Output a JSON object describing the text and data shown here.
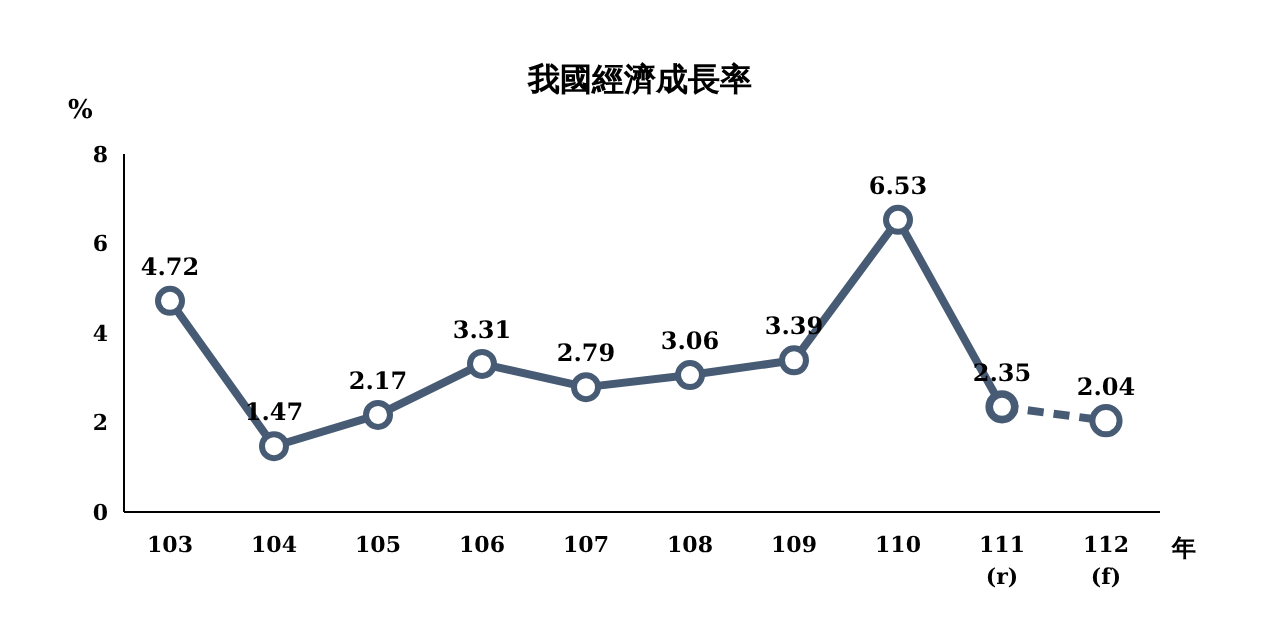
{
  "chart_data": {
    "type": "line",
    "title": "我國經濟成長率",
    "ylabel": "%",
    "xlabel": "年",
    "categories": [
      "103",
      "104",
      "105",
      "106",
      "107",
      "108",
      "109",
      "110",
      "111\n(r)",
      "112\n(f)"
    ],
    "series": [
      {
        "color": "#475c74",
        "line_style": "solid",
        "values": [
          4.72,
          1.47,
          2.17,
          3.31,
          2.79,
          3.06,
          3.39,
          6.53,
          2.35,
          null
        ],
        "value_labels": [
          "4.72",
          "1.47",
          "2.17",
          "3.31",
          "2.79",
          "3.06",
          "3.39",
          "6.53",
          "2.35",
          null
        ]
      },
      {
        "color": "#475c74",
        "line_style": "dashed",
        "values": [
          null,
          null,
          null,
          null,
          null,
          null,
          null,
          null,
          2.35,
          2.04
        ],
        "value_labels": [
          null,
          null,
          null,
          null,
          null,
          null,
          null,
          null,
          null,
          "2.04"
        ]
      }
    ],
    "ylim": [
      0,
      8
    ],
    "yticks": [
      0,
      2,
      4,
      6,
      8
    ],
    "grid": false,
    "marker": "circle"
  }
}
